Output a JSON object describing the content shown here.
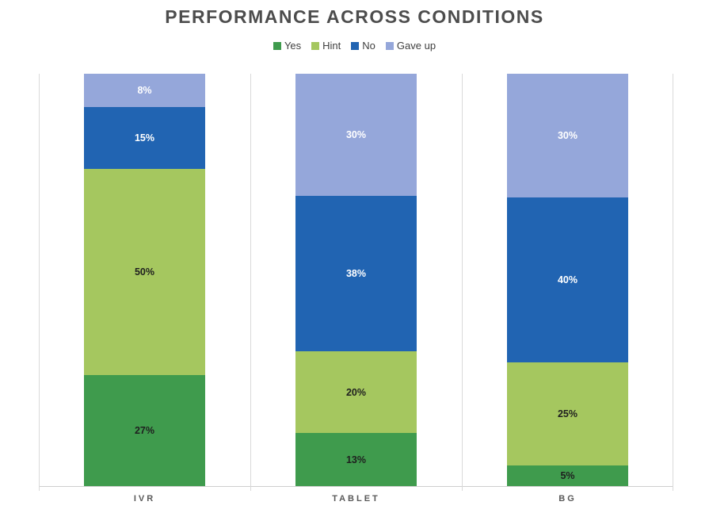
{
  "chart_data": {
    "type": "bar",
    "subtype": "stacked-100",
    "title": "PERFORMANCE ACROSS CONDITIONS",
    "categories": [
      "IVR",
      "TABLET",
      "BG"
    ],
    "series": [
      {
        "name": "Yes",
        "color": "#3f9b4d",
        "label_color": "#1f1f1f",
        "values": [
          27,
          13,
          5
        ]
      },
      {
        "name": "Hint",
        "color": "#a5c75f",
        "label_color": "#1f1f1f",
        "values": [
          50,
          20,
          25
        ]
      },
      {
        "name": "No",
        "color": "#2164b2",
        "label_color": "#ffffff",
        "values": [
          15,
          38,
          40
        ]
      },
      {
        "name": "Gave up",
        "color": "#95a7da",
        "label_color": "#ffffff",
        "values": [
          8,
          30,
          30
        ]
      }
    ],
    "value_suffix": "%",
    "legend_position": "top-center",
    "stack_order_bottom_to_top": [
      "Yes",
      "Hint",
      "No",
      "Gave up"
    ],
    "xlabel": "",
    "ylabel": "",
    "y_axis_labels_visible": false,
    "grid": "category-separators",
    "axis_color": "#d9d9d9",
    "title_color": "#4d4d4d",
    "category_label_color": "#595959",
    "background": "#ffffff"
  }
}
